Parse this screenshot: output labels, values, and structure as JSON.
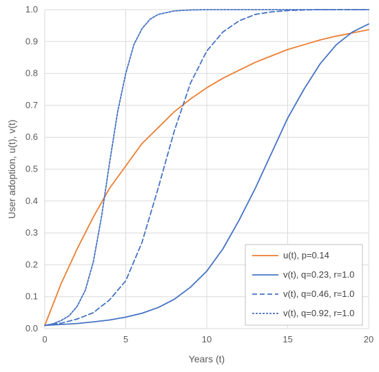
{
  "chart_data": {
    "type": "line",
    "xlabel": "Years (t)",
    "ylabel": "User adoption, u(t), v(t)",
    "xlim": [
      0,
      20
    ],
    "ylim": [
      0.0,
      1.0
    ],
    "x_ticks": [
      "0",
      "5",
      "10",
      "15",
      "20"
    ],
    "y_ticks": [
      "0.0",
      "0.1",
      "0.2",
      "0.3",
      "0.4",
      "0.5",
      "0.6",
      "0.7",
      "0.8",
      "0.9",
      "1.0"
    ],
    "grid": true,
    "legend_position": "bottom-right",
    "series": [
      {
        "name": "u(t), p=0.14",
        "color": "#ED7D31",
        "style": "solid",
        "points": [
          [
            0,
            0.01
          ],
          [
            1,
            0.14
          ],
          [
            2,
            0.25
          ],
          [
            3,
            0.35
          ],
          [
            4,
            0.44
          ],
          [
            5,
            0.51
          ],
          [
            6,
            0.58
          ],
          [
            7,
            0.63
          ],
          [
            8,
            0.68
          ],
          [
            9,
            0.72
          ],
          [
            10,
            0.755
          ],
          [
            11,
            0.785
          ],
          [
            12,
            0.81
          ],
          [
            13,
            0.835
          ],
          [
            14,
            0.855
          ],
          [
            15,
            0.875
          ],
          [
            16,
            0.89
          ],
          [
            17,
            0.905
          ],
          [
            18,
            0.917
          ],
          [
            19,
            0.927
          ],
          [
            20,
            0.937
          ]
        ]
      },
      {
        "name": "v(t), q=0.23, r=1.0",
        "color": "#4472C4",
        "style": "solid",
        "points": [
          [
            0,
            0.01
          ],
          [
            1,
            0.013
          ],
          [
            2,
            0.016
          ],
          [
            3,
            0.021
          ],
          [
            4,
            0.027
          ],
          [
            5,
            0.036
          ],
          [
            6,
            0.048
          ],
          [
            7,
            0.066
          ],
          [
            8,
            0.092
          ],
          [
            9,
            0.13
          ],
          [
            10,
            0.18
          ],
          [
            11,
            0.25
          ],
          [
            12,
            0.34
          ],
          [
            13,
            0.44
          ],
          [
            14,
            0.55
          ],
          [
            15,
            0.66
          ],
          [
            16,
            0.75
          ],
          [
            17,
            0.83
          ],
          [
            18,
            0.89
          ],
          [
            19,
            0.93
          ],
          [
            20,
            0.955
          ]
        ]
      },
      {
        "name": "v(t), q=0.46, r=1.0",
        "color": "#4472C4",
        "style": "dashed",
        "points": [
          [
            0,
            0.01
          ],
          [
            1,
            0.017
          ],
          [
            2,
            0.03
          ],
          [
            3,
            0.05
          ],
          [
            4,
            0.09
          ],
          [
            5,
            0.15
          ],
          [
            6,
            0.27
          ],
          [
            7,
            0.44
          ],
          [
            8,
            0.62
          ],
          [
            9,
            0.77
          ],
          [
            10,
            0.87
          ],
          [
            11,
            0.93
          ],
          [
            12,
            0.965
          ],
          [
            13,
            0.985
          ],
          [
            14,
            0.993
          ],
          [
            15,
            0.997
          ],
          [
            16,
            0.999
          ],
          [
            17,
            1.0
          ],
          [
            18,
            1.0
          ],
          [
            19,
            1.0
          ],
          [
            20,
            1.0
          ]
        ]
      },
      {
        "name": "v(t), q=0.92, r=1.0",
        "color": "#4472C4",
        "style": "dotted",
        "points": [
          [
            0,
            0.01
          ],
          [
            0.5,
            0.015
          ],
          [
            1,
            0.025
          ],
          [
            1.5,
            0.04
          ],
          [
            2,
            0.07
          ],
          [
            2.5,
            0.12
          ],
          [
            3,
            0.21
          ],
          [
            3.5,
            0.35
          ],
          [
            4,
            0.52
          ],
          [
            4.5,
            0.68
          ],
          [
            5,
            0.8
          ],
          [
            5.5,
            0.89
          ],
          [
            6,
            0.94
          ],
          [
            6.5,
            0.97
          ],
          [
            7,
            0.985
          ],
          [
            8,
            0.996
          ],
          [
            9,
            0.999
          ],
          [
            10,
            1.0
          ],
          [
            12,
            1.0
          ],
          [
            15,
            1.0
          ],
          [
            20,
            1.0
          ]
        ]
      }
    ]
  }
}
